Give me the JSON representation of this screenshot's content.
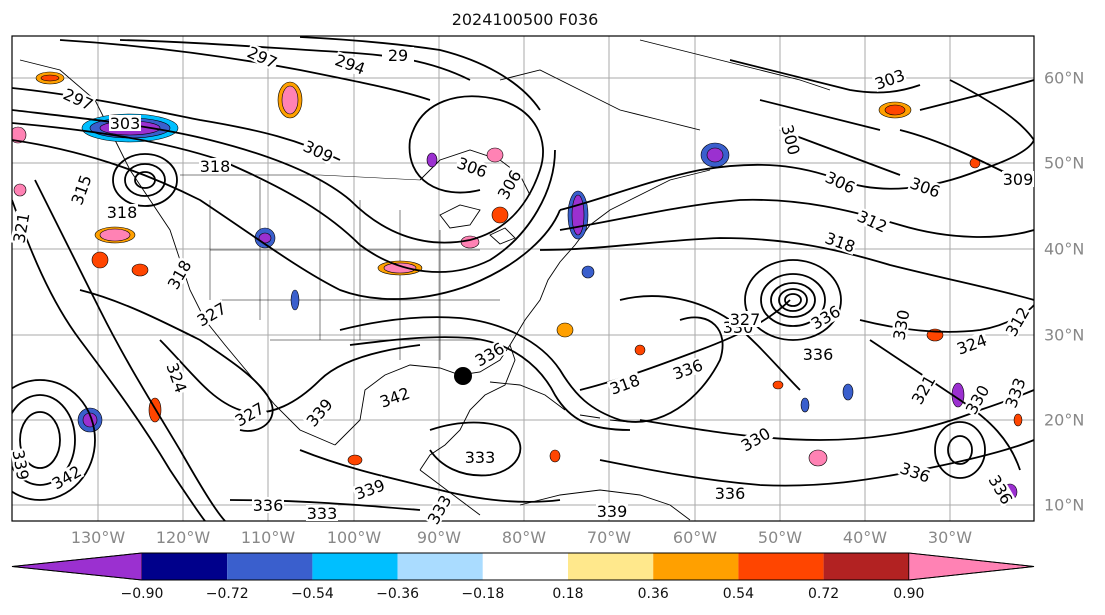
{
  "title": "2024100500 F036",
  "lon_labels": [
    "130°W",
    "120°W",
    "110°W",
    "100°W",
    "90°W",
    "80°W",
    "70°W",
    "60°W",
    "50°W",
    "40°W",
    "30°W"
  ],
  "lat_labels": [
    "60°N",
    "50°N",
    "40°N",
    "30°N",
    "20°N",
    "10°N"
  ],
  "colorbar": {
    "labels": [
      "−0.90",
      "−0.72",
      "−0.54",
      "−0.36",
      "−0.18",
      "0.18",
      "0.36",
      "0.54",
      "0.72",
      "0.90"
    ],
    "colors": [
      "#9b30d0",
      "#00008b",
      "#3a5fcd",
      "#00bfff",
      "#aadcff",
      "#ffffff",
      "#ffe88c",
      "#ffa000",
      "#ff4500",
      "#b22222",
      "#ff82b4"
    ]
  },
  "contour_labels": [
    {
      "text": "297"
    },
    {
      "text": "294"
    },
    {
      "text": "29"
    },
    {
      "text": "297"
    },
    {
      "text": "303"
    },
    {
      "text": "309"
    },
    {
      "text": "306"
    },
    {
      "text": "318"
    },
    {
      "text": "315"
    },
    {
      "text": "318"
    },
    {
      "text": "321"
    },
    {
      "text": "306"
    },
    {
      "text": "303"
    },
    {
      "text": "300"
    },
    {
      "text": "306"
    },
    {
      "text": "312"
    },
    {
      "text": "306"
    },
    {
      "text": "309"
    },
    {
      "text": "318"
    },
    {
      "text": "318"
    },
    {
      "text": "327"
    },
    {
      "text": "324"
    },
    {
      "text": "327"
    },
    {
      "text": "339"
    },
    {
      "text": "342"
    },
    {
      "text": "336"
    },
    {
      "text": "336"
    },
    {
      "text": "336"
    },
    {
      "text": "330"
    },
    {
      "text": "318"
    },
    {
      "text": "330"
    },
    {
      "text": "333"
    },
    {
      "text": "336"
    },
    {
      "text": "339"
    },
    {
      "text": "336"
    },
    {
      "text": "336"
    },
    {
      "text": "339"
    },
    {
      "text": "333"
    },
    {
      "text": "342"
    },
    {
      "text": "339"
    },
    {
      "text": "330"
    },
    {
      "text": "324"
    },
    {
      "text": "321"
    },
    {
      "text": "330"
    },
    {
      "text": "333"
    },
    {
      "text": "336"
    },
    {
      "text": "333"
    },
    {
      "text": "336"
    },
    {
      "text": "327"
    },
    {
      "text": "312"
    }
  ]
}
